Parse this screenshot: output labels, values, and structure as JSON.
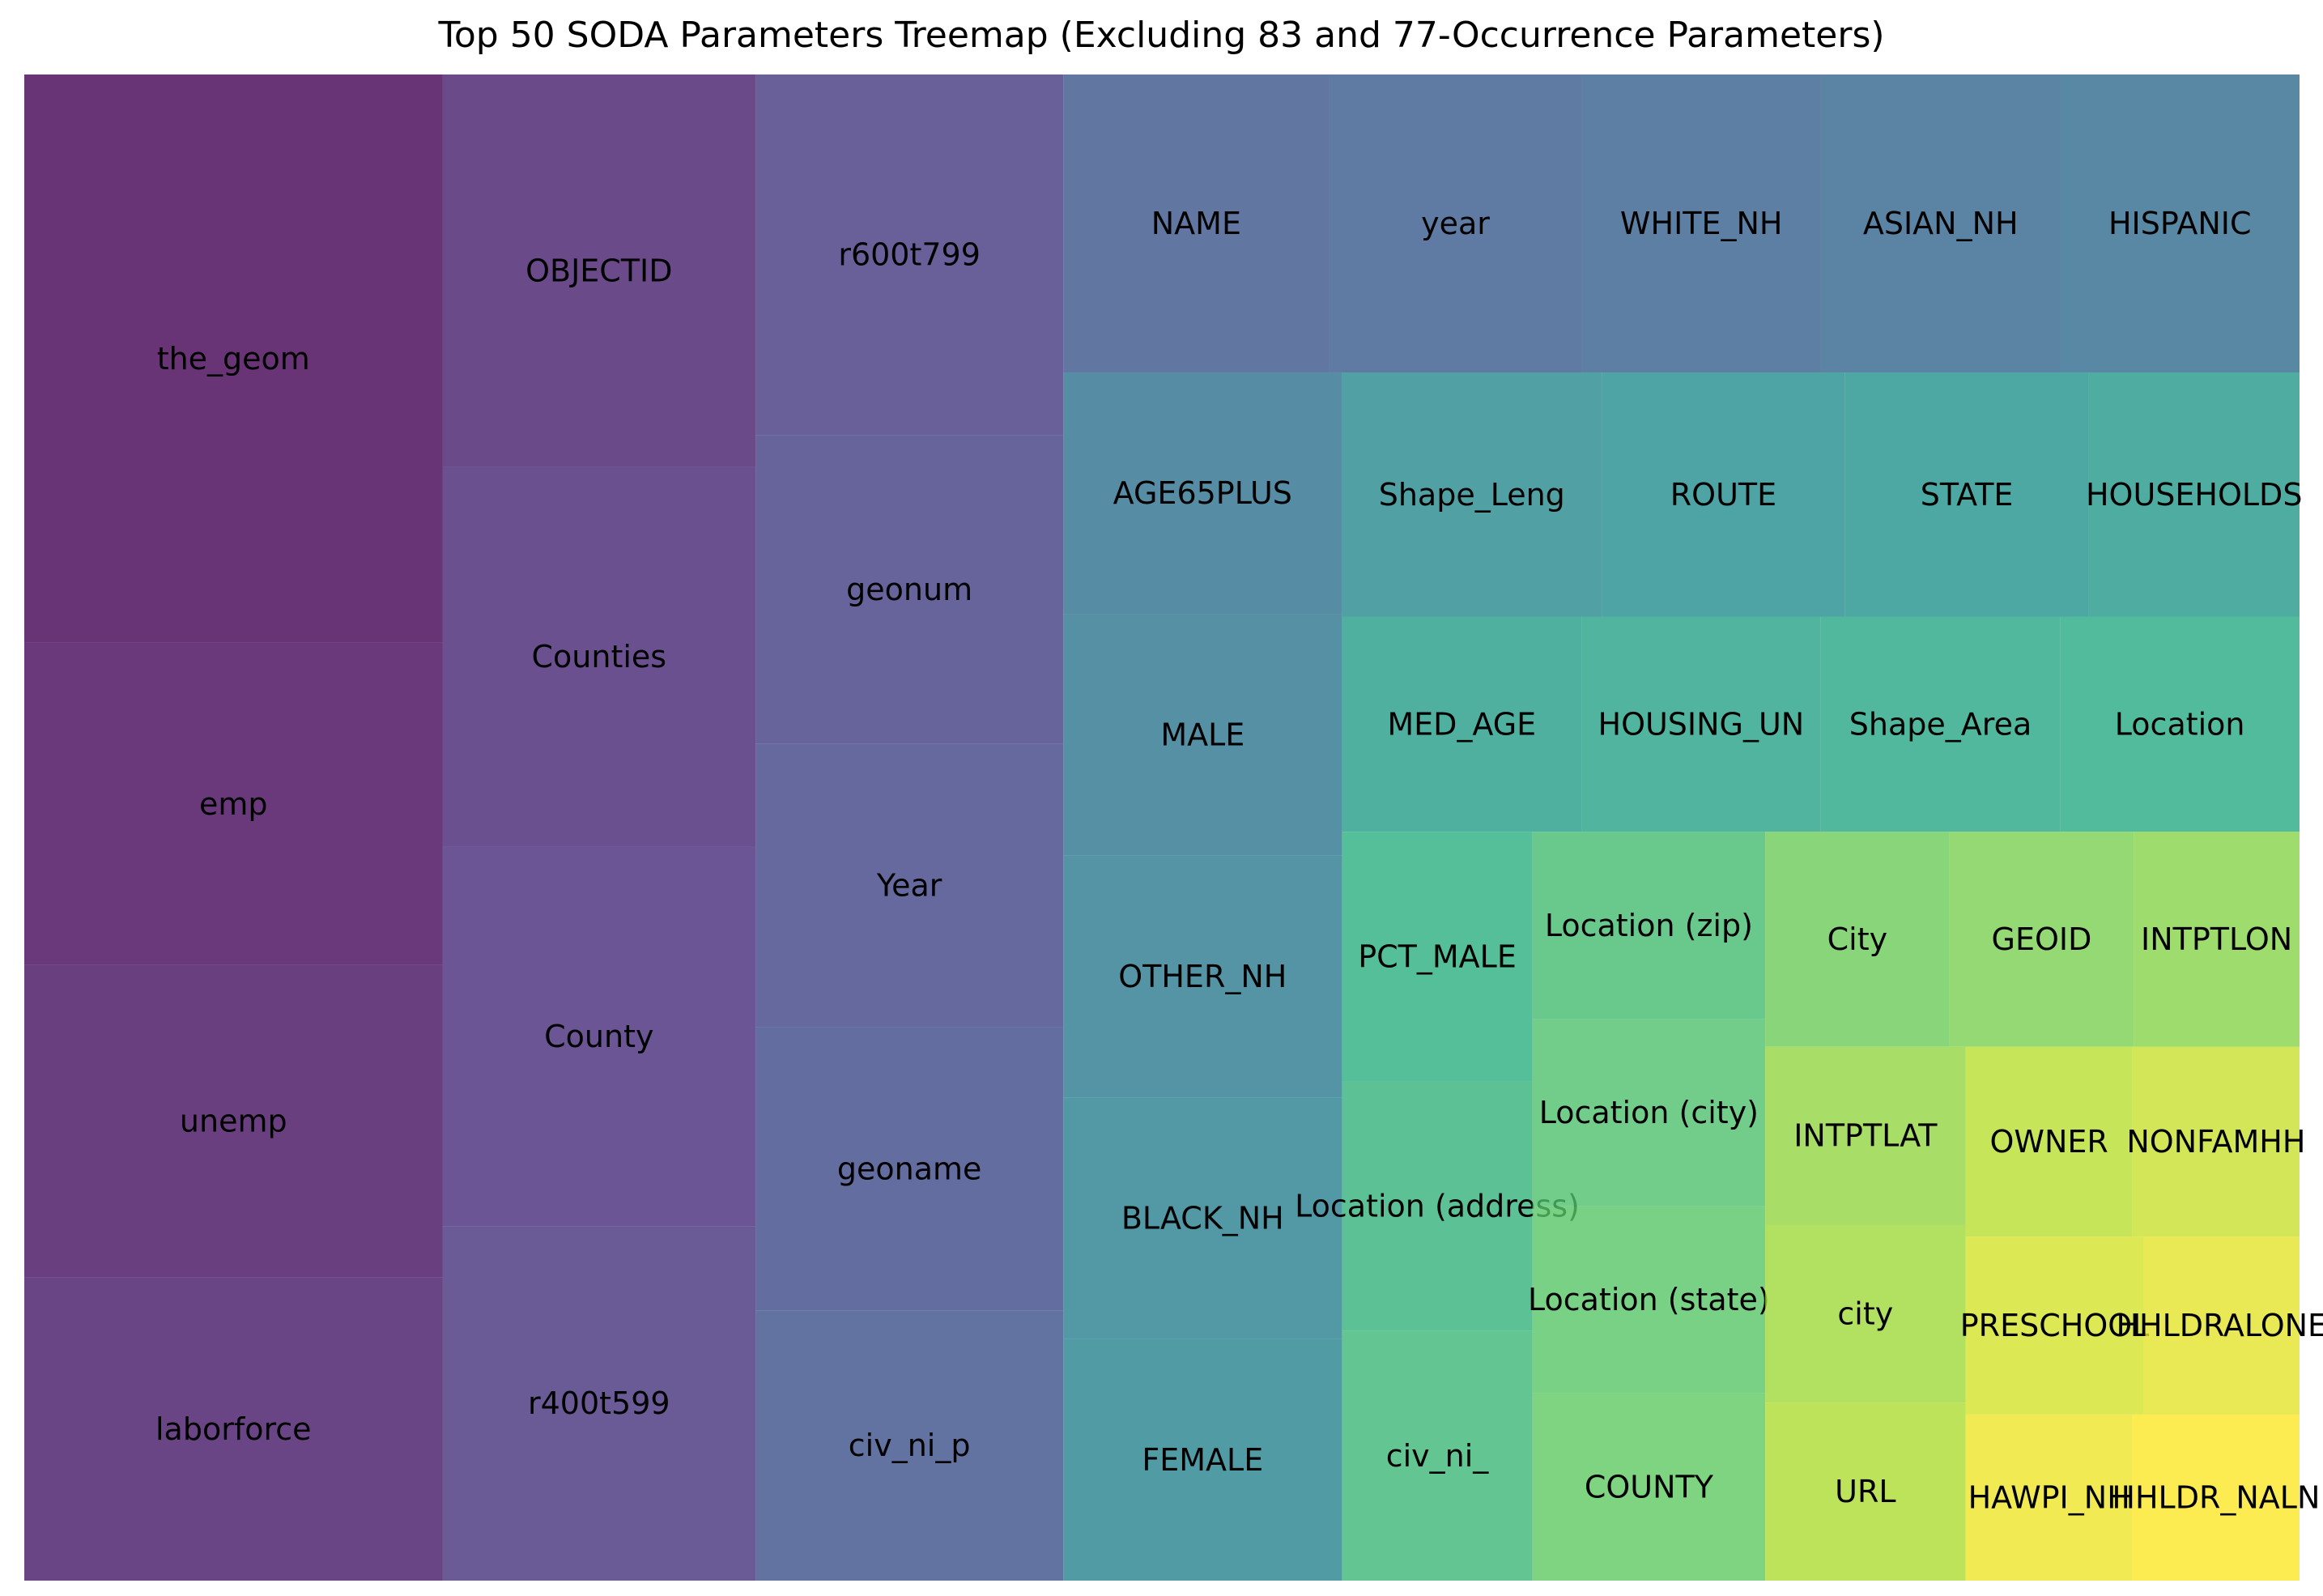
{
  "chart_data": {
    "type": "treemap",
    "title": "Top 50 SODA Parameters Treemap (Excluding 83 and 77-Occurrence Parameters)",
    "colormap": "viridis",
    "tile_alpha": 0.8,
    "items": [
      {
        "label": "the_geom",
        "value": 120
      },
      {
        "label": "emp",
        "value": 68
      },
      {
        "label": "unemp",
        "value": 66
      },
      {
        "label": "laborforce",
        "value": 64
      },
      {
        "label": "OBJECTID",
        "value": 62
      },
      {
        "label": "Counties",
        "value": 60
      },
      {
        "label": "County",
        "value": 60
      },
      {
        "label": "r400t599",
        "value": 56
      },
      {
        "label": "r600t799",
        "value": 56
      },
      {
        "label": "geonum",
        "value": 48
      },
      {
        "label": "Year",
        "value": 44
      },
      {
        "label": "geoname",
        "value": 44
      },
      {
        "label": "civ_ni_p",
        "value": 42
      },
      {
        "label": "NAME",
        "value": 40
      },
      {
        "label": "year",
        "value": 38
      },
      {
        "label": "WHITE_NH",
        "value": 36
      },
      {
        "label": "ASIAN_NH",
        "value": 36
      },
      {
        "label": "HISPANIC",
        "value": 36
      },
      {
        "label": "AGE65PLUS",
        "value": 34
      },
      {
        "label": "MALE",
        "value": 34
      },
      {
        "label": "OTHER_NH",
        "value": 34
      },
      {
        "label": "BLACK_NH",
        "value": 34
      },
      {
        "label": "FEMALE",
        "value": 34
      },
      {
        "label": "Shape_Leng",
        "value": 32
      },
      {
        "label": "ROUTE",
        "value": 30
      },
      {
        "label": "STATE",
        "value": 30
      },
      {
        "label": "HOUSEHOLDS",
        "value": 26
      },
      {
        "label": "MED_AGE",
        "value": 26
      },
      {
        "label": "HOUSING_UN",
        "value": 26
      },
      {
        "label": "Shape_Area",
        "value": 26
      },
      {
        "label": "Location",
        "value": 26
      },
      {
        "label": "PCT_MALE",
        "value": 24
      },
      {
        "label": "Location (address)",
        "value": 24
      },
      {
        "label": "civ_ni_",
        "value": 24
      },
      {
        "label": "Location (zip)",
        "value": 22
      },
      {
        "label": "Location (city)",
        "value": 22
      },
      {
        "label": "Location (state)",
        "value": 22
      },
      {
        "label": "COUNTY",
        "value": 22
      },
      {
        "label": "City",
        "value": 20
      },
      {
        "label": "GEOID",
        "value": 20
      },
      {
        "label": "INTPTLON",
        "value": 18
      },
      {
        "label": "INTPTLAT",
        "value": 18
      },
      {
        "label": "city",
        "value": 18
      },
      {
        "label": "URL",
        "value": 18
      },
      {
        "label": "OWNER",
        "value": 16
      },
      {
        "label": "NONFAMHH",
        "value": 16
      },
      {
        "label": "PRESCHOOL",
        "value": 16
      },
      {
        "label": "HHLDRALONE",
        "value": 14
      },
      {
        "label": "HAWPI_NH",
        "value": 14
      },
      {
        "label": "HHLDR_NALN",
        "value": 14
      }
    ]
  }
}
